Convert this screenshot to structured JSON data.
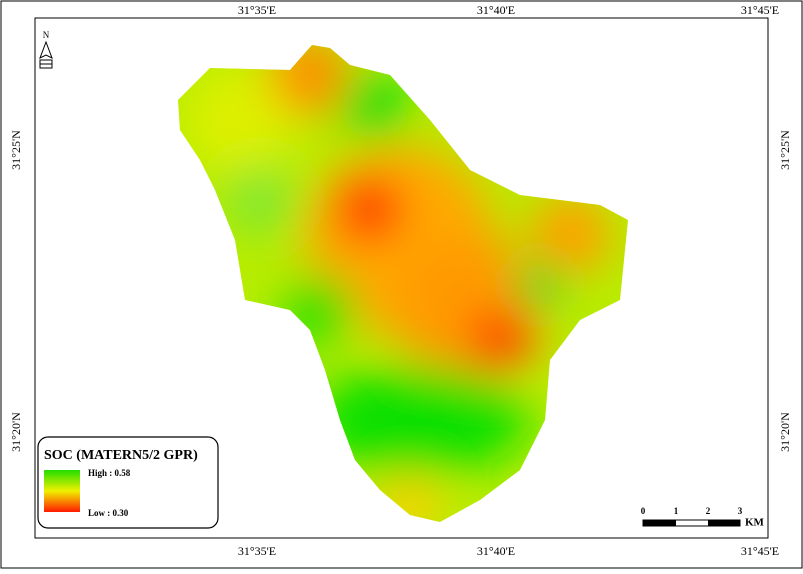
{
  "frame_labels": {
    "top": [
      "31°35'E",
      "31°40'E",
      "31°45'E"
    ],
    "bottom": [
      "31°35'E",
      "31°40'E",
      "31°45'E"
    ],
    "left": [
      "31°25'N",
      "31°20'N"
    ],
    "right": [
      "31°25'N",
      "31°20'N"
    ]
  },
  "north_arrow": {
    "label": "N"
  },
  "legend": {
    "title": "SOC (MATERN5/2 GPR)",
    "high_label": "High : 0.58",
    "low_label": "Low : 0.30"
  },
  "scale_bar": {
    "ticks": [
      "0",
      "1",
      "2",
      "3"
    ],
    "unit": "KM"
  }
}
